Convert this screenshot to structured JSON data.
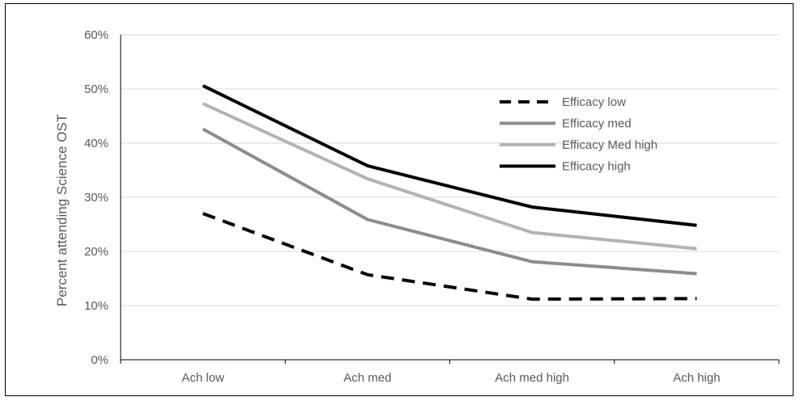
{
  "chart_data": {
    "type": "line",
    "title": "",
    "xlabel": "",
    "ylabel": "Percent attending Science OST",
    "categories": [
      "Ach low",
      "Ach med",
      "Ach med high",
      "Ach high"
    ],
    "ylim": [
      0,
      0.6
    ],
    "yticks": [
      0,
      0.1,
      0.2,
      0.3,
      0.4,
      0.5,
      0.6
    ],
    "ytick_labels": [
      "0%",
      "10%",
      "20%",
      "30%",
      "40%",
      "50%",
      "60%"
    ],
    "grid": true,
    "legend_position": "top-right",
    "series": [
      {
        "name": "Efficacy low",
        "values": [
          0.27,
          0.157,
          0.112,
          0.113
        ],
        "color": "#000000",
        "dashed": true
      },
      {
        "name": "Efficacy med",
        "values": [
          0.426,
          0.259,
          0.181,
          0.159
        ],
        "color": "#8c8c8c",
        "dashed": false
      },
      {
        "name": "Efficacy Med high",
        "values": [
          0.473,
          0.334,
          0.235,
          0.205
        ],
        "color": "#b3b3b3",
        "dashed": false
      },
      {
        "name": "Efficacy high",
        "values": [
          0.506,
          0.358,
          0.282,
          0.248
        ],
        "color": "#000000",
        "dashed": false
      }
    ]
  }
}
